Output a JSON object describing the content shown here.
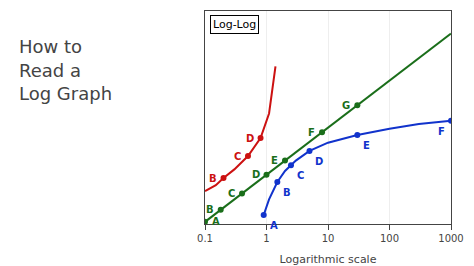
{
  "chart_data": {
    "type": "line",
    "title": "How to\nRead a\nLog Graph",
    "subtitle": "Log-Log",
    "x_label": "Logarithmic scale",
    "log": true,
    "grid": true,
    "tick_labels": "x",
    "xlim": [
      0.1,
      1000
    ],
    "xticks": [
      0.1,
      1,
      10,
      100,
      1000
    ],
    "ylim": [
      0.09,
      3000
    ],
    "yticks": [],
    "series": [
      {
        "type": "line",
        "color": "#1a6e1a",
        "line_style": "solid",
        "x": [
          0.1,
          0.18,
          0.4,
          1.0,
          2.0,
          8.0,
          30.0,
          200.0,
          1000.0
        ],
        "values": [
          0.1,
          0.18,
          0.4,
          1.0,
          2.0,
          8.0,
          30.0,
          200.0,
          1000.0
        ]
      },
      {
        "type": "scatter",
        "color": "#1a6e1a",
        "marker": "circle",
        "x": [
          0.1,
          0.18,
          0.4,
          1.0,
          2.0,
          8.0,
          30.0
        ],
        "values": [
          0.1,
          0.18,
          0.4,
          1.0,
          2.0,
          8.0,
          30.0
        ]
      },
      {
        "type": "line",
        "color": "#cc1111",
        "line_style": "solid",
        "x": [
          0.1,
          0.15,
          0.2,
          0.3,
          0.5,
          0.8,
          1.1,
          1.4
        ],
        "values": [
          0.45,
          0.6,
          0.85,
          1.3,
          2.5,
          6.0,
          20.0,
          200.0
        ]
      },
      {
        "type": "scatter",
        "color": "#cc1111",
        "marker": "circle",
        "x": [
          0.2,
          0.5,
          0.8
        ],
        "values": [
          0.85,
          2.5,
          6.0
        ]
      },
      {
        "type": "line",
        "color": "#1133cc",
        "line_style": "solid",
        "x": [
          0.9,
          1.1,
          1.5,
          2.0,
          3.0,
          5.0,
          10.0,
          30.0,
          100.0,
          300.0,
          1000.0
        ],
        "values": [
          0.14,
          0.3,
          0.7,
          1.2,
          2.0,
          3.2,
          4.8,
          7.0,
          9.5,
          12.0,
          14.0
        ]
      },
      {
        "type": "scatter",
        "color": "#1133cc",
        "marker": "circle",
        "x": [
          0.9,
          1.5,
          2.5,
          5.0,
          30.0,
          1000.0
        ],
        "values": [
          0.14,
          0.7,
          1.6,
          3.2,
          7.0,
          14.0
        ]
      }
    ],
    "annotations": [
      {
        "text": "A",
        "x": 0.1,
        "y": 0.1,
        "color": "#1a6e1a"
      },
      {
        "text": "B",
        "x": 0.18,
        "y": 0.18,
        "color": "#1a6e1a"
      },
      {
        "text": "C",
        "x": 0.4,
        "y": 0.4,
        "color": "#1a6e1a"
      },
      {
        "text": "D",
        "x": 1.0,
        "y": 1.0,
        "color": "#1a6e1a"
      },
      {
        "text": "E",
        "x": 2.0,
        "y": 2.0,
        "color": "#1a6e1a"
      },
      {
        "text": "F",
        "x": 8.0,
        "y": 8.0,
        "color": "#1a6e1a"
      },
      {
        "text": "G",
        "x": 30.0,
        "y": 30.0,
        "color": "#1a6e1a"
      },
      {
        "text": "B",
        "x": 0.2,
        "y": 0.85,
        "color": "#cc1111"
      },
      {
        "text": "C",
        "x": 0.5,
        "y": 2.5,
        "color": "#cc1111"
      },
      {
        "text": "D",
        "x": 0.8,
        "y": 6.0,
        "color": "#cc1111"
      },
      {
        "text": "A",
        "x": 0.9,
        "y": 0.14,
        "color": "#1133cc"
      },
      {
        "text": "B",
        "x": 1.5,
        "y": 0.7,
        "color": "#1133cc"
      },
      {
        "text": "C",
        "x": 2.5,
        "y": 1.6,
        "color": "#1133cc"
      },
      {
        "text": "D",
        "x": 5.0,
        "y": 3.2,
        "color": "#1133cc"
      },
      {
        "text": "E",
        "x": 30.0,
        "y": 7.0,
        "color": "#1133cc"
      },
      {
        "text": "F",
        "x": 1000.0,
        "y": 14.0,
        "color": "#1133cc"
      }
    ]
  }
}
